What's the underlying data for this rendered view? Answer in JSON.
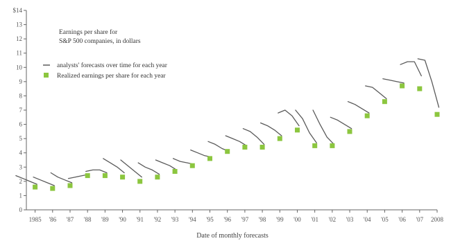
{
  "chart_data": {
    "type": "line",
    "annotation_title_line1": "Earnings per share for",
    "annotation_title_line2": "S&P 500 companies, in dollars",
    "legend": [
      {
        "label": "analysts' forecasts over time for each year",
        "marker": "line"
      },
      {
        "label": "Realized earnings per share for each year",
        "marker": "square"
      }
    ],
    "xlabel": "Date of monthly forecasts",
    "ylabel": "",
    "ylim": [
      0,
      14
    ],
    "y_tick_labels": [
      "0",
      "1",
      "2",
      "3",
      "4",
      "5",
      "6",
      "7",
      "8",
      "9",
      "10",
      "11",
      "12",
      "13",
      "$14"
    ],
    "x_tick_labels": [
      "1985",
      "'86",
      "'87",
      "'88",
      "'89",
      "'90",
      "'91",
      "'92",
      "'93",
      "'94",
      "'95",
      "'96",
      "'97",
      "'98",
      "'99",
      "'00",
      "'01",
      "'02",
      "'03",
      "'04",
      "'05",
      "'06",
      "'07",
      "2008"
    ],
    "x_range": [
      1984.5,
      2008
    ],
    "realized": {
      "name": "Realized earnings per share for each year",
      "x": [
        1985,
        1986,
        1987,
        1988,
        1989,
        1990,
        1991,
        1992,
        1993,
        1994,
        1995,
        1996,
        1997,
        1998,
        1999,
        2000,
        2001,
        2002,
        2003,
        2004,
        2005,
        2006,
        2007,
        2008
      ],
      "y": [
        1.6,
        1.5,
        1.7,
        2.4,
        2.4,
        2.3,
        2.0,
        2.3,
        2.7,
        3.1,
        3.6,
        4.1,
        4.4,
        4.4,
        5.0,
        5.6,
        4.5,
        4.5,
        5.5,
        6.6,
        7.6,
        8.7,
        8.5,
        6.7
      ]
    },
    "forecasts": [
      {
        "name": "1985",
        "x": [
          1983.9,
          1984.3,
          1984.7,
          1985.1
        ],
        "y": [
          2.4,
          2.2,
          2.0,
          1.8
        ]
      },
      {
        "name": "1986",
        "x": [
          1984.9,
          1985.3,
          1985.7,
          1986.1
        ],
        "y": [
          2.3,
          2.1,
          1.9,
          1.7
        ]
      },
      {
        "name": "1987",
        "x": [
          1985.9,
          1986.3,
          1986.7,
          1987.1
        ],
        "y": [
          2.6,
          2.3,
          2.1,
          1.9
        ]
      },
      {
        "name": "1988",
        "x": [
          1986.9,
          1987.3,
          1987.7,
          1988.1
        ],
        "y": [
          2.2,
          2.3,
          2.4,
          2.5
        ]
      },
      {
        "name": "1989",
        "x": [
          1987.9,
          1988.3,
          1988.7,
          1989.1
        ],
        "y": [
          2.7,
          2.8,
          2.8,
          2.6
        ]
      },
      {
        "name": "1990",
        "x": [
          1988.9,
          1989.3,
          1989.7,
          1990.1
        ],
        "y": [
          3.6,
          3.3,
          3.0,
          2.6
        ]
      },
      {
        "name": "1991",
        "x": [
          1989.9,
          1990.3,
          1990.7,
          1991.1
        ],
        "y": [
          3.5,
          3.1,
          2.7,
          2.3
        ]
      },
      {
        "name": "1992",
        "x": [
          1990.9,
          1991.3,
          1991.7,
          1992.1
        ],
        "y": [
          3.3,
          3.0,
          2.8,
          2.5
        ]
      },
      {
        "name": "1993",
        "x": [
          1991.9,
          1992.3,
          1992.7,
          1993.1
        ],
        "y": [
          3.5,
          3.3,
          3.1,
          2.8
        ]
      },
      {
        "name": "1994",
        "x": [
          1992.9,
          1993.3,
          1993.7,
          1994.1
        ],
        "y": [
          3.6,
          3.4,
          3.3,
          3.2
        ]
      },
      {
        "name": "1995",
        "x": [
          1993.9,
          1994.3,
          1994.7,
          1995.1
        ],
        "y": [
          4.2,
          4.0,
          3.8,
          3.7
        ]
      },
      {
        "name": "1996",
        "x": [
          1994.9,
          1995.3,
          1995.7,
          1996.1
        ],
        "y": [
          4.8,
          4.6,
          4.3,
          4.1
        ]
      },
      {
        "name": "1997",
        "x": [
          1995.9,
          1996.3,
          1996.7,
          1997.1
        ],
        "y": [
          5.2,
          5.0,
          4.8,
          4.5
        ]
      },
      {
        "name": "1998",
        "x": [
          1996.9,
          1997.3,
          1997.7,
          1998.1
        ],
        "y": [
          5.7,
          5.5,
          5.1,
          4.6
        ]
      },
      {
        "name": "1999",
        "x": [
          1997.9,
          1998.3,
          1998.7,
          1999.1
        ],
        "y": [
          6.1,
          5.9,
          5.6,
          5.2
        ]
      },
      {
        "name": "2000",
        "x": [
          1998.9,
          1999.3,
          1999.7,
          2000.1
        ],
        "y": [
          6.8,
          7.0,
          6.6,
          5.9
        ]
      },
      {
        "name": "2001",
        "x": [
          1999.9,
          2000.3,
          2000.7,
          2001.1
        ],
        "y": [
          7.0,
          6.4,
          5.4,
          4.7
        ]
      },
      {
        "name": "2002",
        "x": [
          2000.9,
          2001.3,
          2001.7,
          2002.1
        ],
        "y": [
          7.0,
          6.0,
          5.1,
          4.6
        ]
      },
      {
        "name": "2003",
        "x": [
          2001.9,
          2002.3,
          2002.7,
          2003.1
        ],
        "y": [
          6.5,
          6.3,
          6.0,
          5.7
        ]
      },
      {
        "name": "2004",
        "x": [
          2002.9,
          2003.3,
          2003.7,
          2004.1
        ],
        "y": [
          7.6,
          7.4,
          7.1,
          6.8
        ]
      },
      {
        "name": "2005",
        "x": [
          2003.9,
          2004.3,
          2004.7,
          2005.1
        ],
        "y": [
          8.7,
          8.6,
          8.2,
          7.8
        ]
      },
      {
        "name": "2006",
        "x": [
          2004.9,
          2005.3,
          2005.7,
          2006.1
        ],
        "y": [
          9.2,
          9.1,
          9.0,
          8.9
        ]
      },
      {
        "name": "2007",
        "x": [
          2005.9,
          2006.3,
          2006.7,
          2007.1
        ],
        "y": [
          10.2,
          10.4,
          10.4,
          9.4
        ]
      },
      {
        "name": "2008",
        "x": [
          2006.9,
          2007.3,
          2007.7,
          2008.1
        ],
        "y": [
          10.6,
          10.5,
          9.0,
          7.2
        ]
      }
    ],
    "grid": false,
    "colors": {
      "forecast_line": "#5a5a5a",
      "realized_marker": "#8cc63f",
      "axis": "#666666"
    }
  }
}
